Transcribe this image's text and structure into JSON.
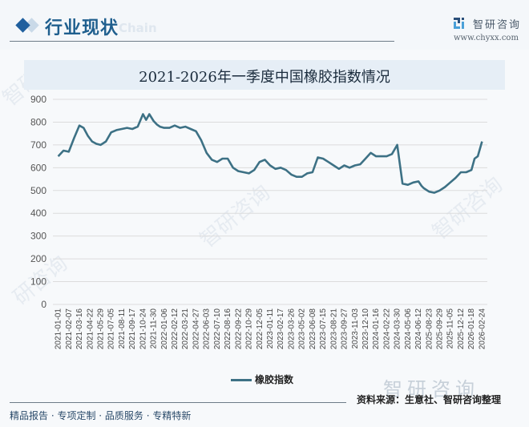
{
  "header": {
    "section_title": "行业现状",
    "ghost_text": "Chain",
    "brand_name": "智研咨询",
    "brand_url": "www.chyxx.com"
  },
  "colors": {
    "line": "#3d7185",
    "accent": "#1f5f9e",
    "title_band": "#e6eef6",
    "grid": "#dcdcdc"
  },
  "chart_data": {
    "type": "line",
    "title": "2021-2026年一季度中国橡胶指数情况",
    "xlabel": "",
    "ylabel": "",
    "ylim": [
      0,
      900
    ],
    "yticks": [
      0,
      100,
      200,
      300,
      400,
      500,
      600,
      700,
      800,
      900
    ],
    "grid": true,
    "legend_position": "bottom",
    "categories": [
      "2021-01-01",
      "2021-02-07",
      "2021-03-16",
      "2021-04-22",
      "2021-05-29",
      "2021-07-05",
      "2021-08-11",
      "2021-09-17",
      "2021-10-24",
      "2021-11-30",
      "2022-01-06",
      "2022-02-12",
      "2022-03-21",
      "2022-04-27",
      "2022-06-03",
      "2022-07-10",
      "2022-08-16",
      "2022-09-22",
      "2022-10-29",
      "2022-12-05",
      "2023-01-11",
      "2023-02-17",
      "2023-03-26",
      "2023-05-02",
      "2023-06-08",
      "2023-07-15",
      "2023-08-21",
      "2023-09-27",
      "2023-11-03",
      "2023-12-10",
      "2024-01-16",
      "2024-02-22",
      "2024-03-30",
      "2024-05-06",
      "2024-06-12",
      "2025-08-23",
      "2025-09-29",
      "2025-11-05",
      "2025-12-12",
      "2026-01-18",
      "2026-02-24"
    ],
    "series": [
      {
        "name": "橡胶指数",
        "x": [
          0,
          0.5,
          1,
          1.5,
          2,
          2.4,
          2.8,
          3.2,
          3.6,
          4,
          4.5,
          5,
          5.5,
          6,
          6.5,
          7,
          7.5,
          8,
          8.3,
          8.6,
          9,
          9.3,
          9.6,
          10,
          10.5,
          11,
          11.5,
          12,
          12.5,
          13,
          13.5,
          14,
          14.5,
          15,
          15.5,
          16,
          16.5,
          17,
          17.5,
          18,
          18.5,
          19,
          19.5,
          20,
          20.5,
          21,
          21.5,
          22,
          22.5,
          23,
          23.5,
          24,
          24.5,
          25,
          25.5,
          26,
          26.5,
          27,
          27.5,
          28,
          28.5,
          29,
          29.5,
          30,
          30.5,
          31,
          31.5,
          32,
          32.5,
          33,
          33.5,
          34,
          34.3,
          34.5,
          35,
          35.5,
          36,
          36.5,
          37,
          37.5,
          38,
          38.5,
          39,
          39.3,
          39.6,
          40
        ],
        "values": [
          650,
          675,
          670,
          730,
          785,
          775,
          740,
          715,
          705,
          700,
          715,
          755,
          765,
          770,
          775,
          770,
          780,
          835,
          810,
          835,
          805,
          790,
          780,
          775,
          775,
          785,
          775,
          780,
          770,
          760,
          720,
          665,
          635,
          625,
          640,
          640,
          600,
          585,
          580,
          575,
          590,
          625,
          635,
          610,
          595,
          600,
          590,
          570,
          560,
          560,
          575,
          580,
          645,
          640,
          625,
          610,
          595,
          610,
          600,
          610,
          615,
          640,
          665,
          650,
          650,
          650,
          660,
          700,
          530,
          525,
          535,
          540,
          520,
          510,
          495,
          490,
          500,
          515,
          535,
          555,
          580,
          580,
          590,
          640,
          650,
          715
        ]
      }
    ]
  },
  "legend": {
    "label": "橡胶指数"
  },
  "footer": {
    "slogan": "精品报告 · 专项定制 · 品质服务 · 专精特新",
    "source": "资料来源：生意社、智研咨询整理",
    "watermark_brand": "智研咨询"
  }
}
